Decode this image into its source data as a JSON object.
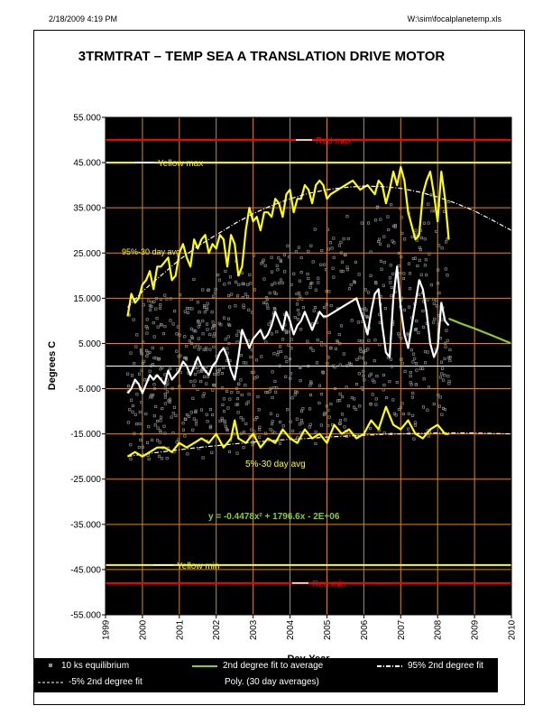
{
  "header": {
    "left": "2/18/2009 4:19 PM",
    "right": "W:\\sim\\focalplanetemp.xls"
  },
  "colors": {
    "plot_bg": "#000000",
    "grid": "#d88a1c",
    "yellow": "#ffff00",
    "red": "#ff0000",
    "white": "#ffffff",
    "green": "#8ccc2a",
    "points": "#8f8f8f",
    "equation": "#8ccc2a"
  },
  "chart_data": {
    "type": "scatter",
    "title": "3TRMTRAT – TEMP  SEA A TRANSLATION DRIVE MOTOR",
    "xlabel": "Day-Year",
    "ylabel": "Degrees C",
    "xlim": [
      1999,
      2010
    ],
    "ylim": [
      -55,
      55
    ],
    "x_ticks": [
      "1999",
      "2000",
      "2001",
      "2002",
      "2003",
      "2004",
      "2005",
      "2006",
      "2007",
      "2008",
      "2009",
      "2010"
    ],
    "y_ticks": [
      "55.000",
      "45.000",
      "35.000",
      "25.000",
      "15.000",
      "5.000",
      "-5.000",
      "-15.000",
      "-25.000",
      "-35.000",
      "-45.000",
      "-55.000"
    ],
    "grid": true,
    "reference_lines": [
      {
        "name": "Red max",
        "y": 50,
        "color": "#ff0000"
      },
      {
        "name": "Yellow max",
        "y": 45,
        "color": "#ffff00"
      },
      {
        "name": "Yellow min",
        "y": -44,
        "color": "#ffff00"
      },
      {
        "name": "Red min",
        "y": -48,
        "color": "#ff0000"
      }
    ],
    "annotations": {
      "upper_avg": "95%-30 day avg",
      "lower_avg": "5%-30 day avg",
      "equation": "y = -0.4478x² + 1796.6x - 2E+06"
    },
    "series": [
      {
        "name": "95%-30 day avg",
        "color": "#ffff00",
        "x": [
          1999.6,
          1999.7,
          1999.8,
          1999.9,
          2000.0,
          2000.1,
          2000.2,
          2000.3,
          2000.4,
          2000.5,
          2000.6,
          2000.7,
          2000.8,
          2000.9,
          2001.0,
          2001.1,
          2001.2,
          2001.3,
          2001.4,
          2001.5,
          2001.6,
          2001.7,
          2001.8,
          2001.9,
          2002.0,
          2002.1,
          2002.2,
          2002.3,
          2002.4,
          2002.5,
          2002.6,
          2002.7,
          2002.8,
          2002.9,
          2003.0,
          2003.1,
          2003.2,
          2003.3,
          2003.4,
          2003.5,
          2003.6,
          2003.7,
          2003.8,
          2003.9,
          2004.0,
          2004.1,
          2004.2,
          2004.3,
          2004.4,
          2004.5,
          2004.6,
          2004.7,
          2004.8,
          2004.9,
          2005.0,
          2005.1,
          2005.3,
          2005.5,
          2005.7,
          2005.9,
          2006.1,
          2006.2,
          2006.3,
          2006.4,
          2006.5,
          2006.6,
          2006.7,
          2006.8,
          2006.9,
          2007.0,
          2007.1,
          2007.2,
          2007.3,
          2007.4,
          2007.5,
          2007.6,
          2007.7,
          2007.8,
          2007.9,
          2008.0,
          2008.1,
          2008.2,
          2008.3
        ],
        "y": [
          11,
          16,
          14,
          15,
          18,
          19,
          21,
          17,
          22,
          22,
          23,
          24,
          19,
          20,
          25,
          27,
          24,
          22,
          28,
          26,
          28,
          29,
          25,
          27,
          26,
          29,
          28,
          22,
          29,
          27,
          20,
          22,
          30,
          35,
          32,
          33,
          30,
          34,
          34,
          33,
          37,
          36,
          33,
          38,
          39,
          34,
          37,
          37,
          40,
          39,
          36,
          40,
          41,
          40,
          37,
          38,
          39,
          40,
          41,
          39,
          40,
          39,
          38,
          41,
          40,
          36,
          39,
          43,
          40,
          44,
          41,
          34,
          31,
          28,
          29,
          38,
          41,
          43,
          38,
          32,
          43,
          37,
          28
        ]
      },
      {
        "name": "Poly. (30 day averages)",
        "color": "#ffffff",
        "x": [
          1999.6,
          1999.7,
          1999.8,
          1999.9,
          2000.0,
          2000.1,
          2000.2,
          2000.3,
          2000.4,
          2000.5,
          2000.6,
          2000.7,
          2000.8,
          2000.9,
          2001.0,
          2001.1,
          2001.2,
          2001.3,
          2001.4,
          2001.5,
          2001.6,
          2001.7,
          2001.8,
          2001.9,
          2002.0,
          2002.1,
          2002.2,
          2002.3,
          2002.4,
          2002.5,
          2002.6,
          2002.7,
          2002.8,
          2002.9,
          2003.0,
          2003.1,
          2003.2,
          2003.3,
          2003.4,
          2003.5,
          2003.6,
          2003.7,
          2003.8,
          2003.9,
          2004.0,
          2004.1,
          2004.2,
          2004.3,
          2004.4,
          2004.5,
          2004.6,
          2004.7,
          2004.8,
          2004.9,
          2005.0,
          2005.2,
          2005.4,
          2005.6,
          2005.8,
          2006.0,
          2006.1,
          2006.2,
          2006.3,
          2006.4,
          2006.5,
          2006.6,
          2006.7,
          2006.8,
          2006.9,
          2007.0,
          2007.1,
          2007.2,
          2007.3,
          2007.4,
          2007.5,
          2007.6,
          2007.7,
          2007.8,
          2007.9,
          2008.0,
          2008.1,
          2008.2,
          2008.3
        ],
        "y": [
          -6,
          -5,
          -3,
          -4,
          -6,
          -4,
          -2,
          -3,
          -2,
          -3,
          -4,
          -1,
          -3,
          -2,
          -1,
          1,
          0,
          -2,
          0,
          2,
          0,
          -1,
          -2,
          0,
          1,
          3,
          4,
          2,
          -1,
          -3,
          2,
          8,
          6,
          4,
          6,
          7,
          8,
          6,
          7,
          9,
          12,
          10,
          8,
          12,
          10,
          7,
          9,
          10,
          12,
          10,
          8,
          10,
          12,
          11,
          11,
          12,
          13,
          14,
          15,
          10,
          7,
          12,
          16,
          17,
          9,
          3,
          2,
          15,
          22,
          13,
          7,
          4,
          9,
          14,
          19,
          17,
          12,
          5,
          2,
          4,
          14,
          10,
          9
        ]
      },
      {
        "name": "95% 2nd degree fit",
        "color": "#ffffff",
        "dashed": true,
        "x": [
          1999.6,
          2000.0,
          2000.5,
          2001.0,
          2001.5,
          2002.0,
          2002.5,
          2003.0,
          2003.5,
          2004.0,
          2004.5,
          2005.0,
          2005.5,
          2006.0,
          2006.5,
          2007.0,
          2007.5,
          2008.0,
          2008.5,
          2009.0,
          2009.5,
          2010.0
        ],
        "y": [
          13,
          16.5,
          20,
          23.5,
          26.5,
          29,
          31.5,
          33.7,
          35.5,
          37,
          38.2,
          39,
          39.5,
          39.8,
          39.7,
          39.3,
          38.5,
          37.4,
          36,
          34.3,
          32.2,
          30
        ]
      },
      {
        "name": "-5% 2nd degree fit",
        "color": "#ffffff",
        "dashed": true,
        "x": [
          1999.6,
          2000.0,
          2000.5,
          2001.0,
          2001.5,
          2002.0,
          2002.5,
          2003.0,
          2003.5,
          2004.0,
          2004.5,
          2005.0,
          2005.5,
          2006.0,
          2006.5,
          2007.0,
          2007.5,
          2008.0,
          2008.5,
          2009.0,
          2009.5,
          2010.0
        ],
        "y": [
          -20,
          -19.5,
          -19,
          -18.5,
          -18,
          -17.6,
          -17.2,
          -16.8,
          -16.5,
          -16.2,
          -16,
          -15.7,
          -15.5,
          -15.3,
          -15.1,
          -15,
          -14.9,
          -14.8,
          -14.8,
          -14.8,
          -14.9,
          -15
        ]
      },
      {
        "name": "5%-30 day avg",
        "color": "#ffff00",
        "x": [
          1999.6,
          1999.8,
          2000.0,
          2000.2,
          2000.4,
          2000.6,
          2000.8,
          2001.0,
          2001.2,
          2001.4,
          2001.6,
          2001.8,
          2002.0,
          2002.2,
          2002.4,
          2002.5,
          2002.6,
          2002.8,
          2003.0,
          2003.2,
          2003.4,
          2003.6,
          2003.8,
          2004.0,
          2004.2,
          2004.4,
          2004.6,
          2004.8,
          2005.0,
          2005.2,
          2005.4,
          2005.6,
          2005.8,
          2006.0,
          2006.2,
          2006.4,
          2006.6,
          2006.8,
          2007.0,
          2007.2,
          2007.4,
          2007.6,
          2007.8,
          2008.0,
          2008.2,
          2008.3
        ],
        "y": [
          -20,
          -19,
          -20,
          -19,
          -18,
          -18,
          -19,
          -17,
          -18,
          -17,
          -16,
          -17,
          -15,
          -18,
          -16,
          -12,
          -16,
          -17,
          -15,
          -18,
          -16,
          -17,
          -14,
          -16,
          -17,
          -14,
          -16,
          -15,
          -17,
          -13,
          -15,
          -14,
          -16,
          -15,
          -12,
          -14,
          -9,
          -13,
          -14,
          -12,
          -15,
          -16,
          -14,
          -13,
          -15,
          -15
        ]
      },
      {
        "name": "2nd degree fit to average",
        "color": "#8ccc2a",
        "x": [
          2008.3,
          2008.6,
          2009.0,
          2009.4,
          2009.7,
          2010.0
        ],
        "y": [
          10.5,
          9.5,
          8.3,
          7,
          6,
          5
        ]
      }
    ],
    "legend": [
      "10 ks equilibrium",
      "2nd degree fit to average",
      "95% 2nd degree fit",
      "-5% 2nd degree fit",
      "Poly. (30 day averages)"
    ]
  }
}
